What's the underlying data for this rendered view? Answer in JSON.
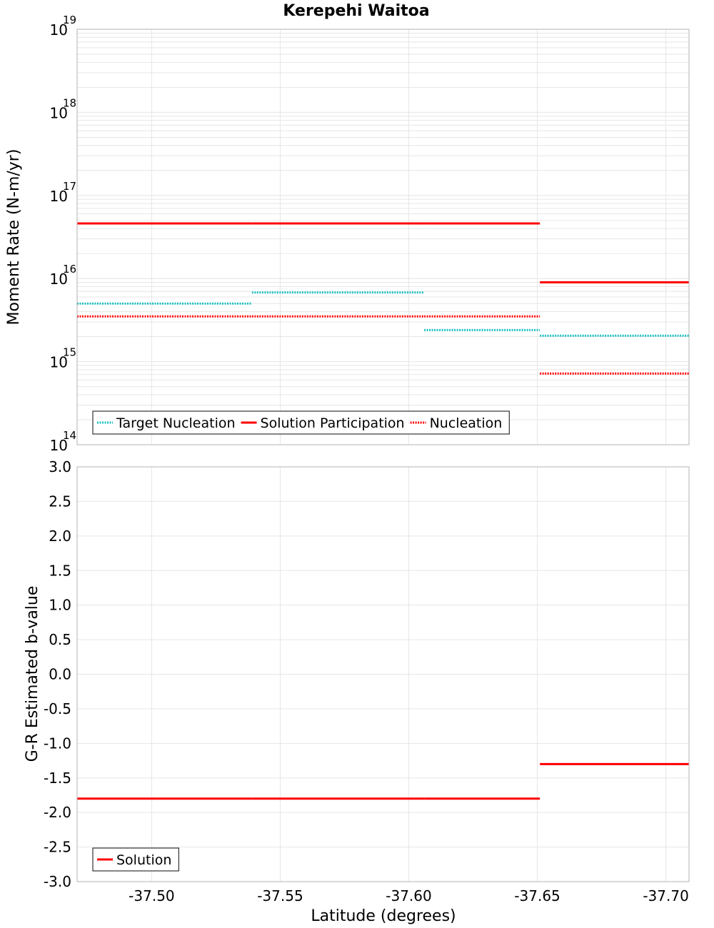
{
  "title": "Kerepehi Waitoa",
  "xlabel": "Latitude (degrees)",
  "x_ticks": [
    -37.5,
    -37.55,
    -37.6,
    -37.65,
    -37.7
  ],
  "x_range": [
    -37.471,
    -37.709
  ],
  "colors": {
    "red": "#ff0000",
    "cyan": "#1fbfbf",
    "grid": "#e6e6e6",
    "frame": "#b3b3b3"
  },
  "chart_data": [
    {
      "type": "line",
      "title": "Kerepehi Waitoa",
      "ylabel": "Moment Rate (N-m/yr)",
      "yscale": "log",
      "ylim": [
        100000000000000.0,
        1e+19
      ],
      "y_tick_exponents": [
        14,
        15,
        16,
        17,
        18,
        19
      ],
      "legend_position": "bottom-left",
      "series": [
        {
          "name": "Target Nucleation",
          "style": "dotted",
          "color": "#1fbfbf",
          "segments": [
            {
              "x": [
                -37.471,
                -37.539
              ],
              "y": 5000000000000000.0
            },
            {
              "x": [
                -37.539,
                -37.606
              ],
              "y": 6800000000000000.0
            },
            {
              "x": [
                -37.606,
                -37.651
              ],
              "y": 2400000000000000.0
            },
            {
              "x": [
                -37.651,
                -37.709
              ],
              "y": 2050000000000000.0
            }
          ]
        },
        {
          "name": "Solution Participation",
          "style": "solid",
          "color": "#ff0000",
          "segments": [
            {
              "x": [
                -37.471,
                -37.539
              ],
              "y": 4.6e+16
            },
            {
              "x": [
                -37.539,
                -37.606
              ],
              "y": 4.6e+16
            },
            {
              "x": [
                -37.606,
                -37.651
              ],
              "y": 4.6e+16
            },
            {
              "x": [
                -37.651,
                -37.709
              ],
              "y": 9000000000000000.0
            }
          ]
        },
        {
          "name": "Nucleation",
          "style": "dotted",
          "color": "#ff0000",
          "segments": [
            {
              "x": [
                -37.471,
                -37.539
              ],
              "y": 3500000000000000.0
            },
            {
              "x": [
                -37.539,
                -37.606
              ],
              "y": 3500000000000000.0
            },
            {
              "x": [
                -37.606,
                -37.651
              ],
              "y": 3500000000000000.0
            },
            {
              "x": [
                -37.651,
                -37.709
              ],
              "y": 720000000000000.0
            }
          ]
        }
      ]
    },
    {
      "type": "line",
      "xlabel": "Latitude (degrees)",
      "ylabel": "G-R Estimated b-value",
      "ylim": [
        -3.0,
        3.0
      ],
      "y_ticks": [
        "3.0",
        "2.5",
        "2.0",
        "1.5",
        "1.0",
        "0.5",
        "0.0",
        "-0.5",
        "-1.0",
        "-1.5",
        "-2.0",
        "-2.5",
        "-3.0"
      ],
      "legend_position": "bottom-left",
      "series": [
        {
          "name": "Solution",
          "style": "solid",
          "color": "#ff0000",
          "segments": [
            {
              "x": [
                -37.471,
                -37.539
              ],
              "y": -1.8
            },
            {
              "x": [
                -37.539,
                -37.606
              ],
              "y": -1.8
            },
            {
              "x": [
                -37.606,
                -37.651
              ],
              "y": -1.8
            },
            {
              "x": [
                -37.651,
                -37.709
              ],
              "y": -1.3
            }
          ]
        }
      ]
    }
  ]
}
